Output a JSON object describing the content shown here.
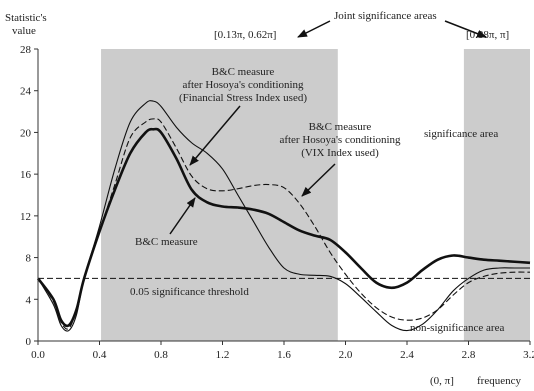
{
  "chart_data": {
    "type": "line",
    "title": "",
    "ylabel_line1": "Statistic's",
    "ylabel_line2": "value",
    "xlabel": "frequency",
    "xlim": [
      0,
      3.2
    ],
    "ylim": [
      0,
      28
    ],
    "x_ticks": [
      0.0,
      0.4,
      0.8,
      1.2,
      1.6,
      2.0,
      2.4,
      2.8,
      3.2
    ],
    "x_tick_labels": [
      "0.0",
      "0.4",
      "0.8",
      "1.2",
      "1.6",
      "2.0",
      "2.4",
      "2.8",
      "3.2"
    ],
    "y_ticks": [
      0,
      4,
      8,
      12,
      16,
      20,
      24,
      28
    ],
    "y_tick_labels": [
      "0",
      "4",
      "8",
      "12",
      "16",
      "20",
      "24",
      "28"
    ],
    "shaded_regions": [
      {
        "x_range": [
          0.41,
          1.95
        ],
        "label": "[0.13π, 0.62π]"
      },
      {
        "x_range": [
          2.77,
          3.2
        ],
        "label": "[0.88π, π]"
      }
    ],
    "threshold": {
      "value": 6.0,
      "label": "0.05 significance threshold"
    },
    "series": [
      {
        "key": "bc",
        "style": "thick",
        "x": [
          0.0,
          0.1,
          0.15,
          0.2,
          0.25,
          0.3,
          0.4,
          0.5,
          0.6,
          0.7,
          0.75,
          0.8,
          0.9,
          1.0,
          1.1,
          1.2,
          1.3,
          1.4,
          1.5,
          1.6,
          1.7,
          1.8,
          1.9,
          2.0,
          2.1,
          2.2,
          2.3,
          2.4,
          2.5,
          2.6,
          2.7,
          2.8,
          2.9,
          3.0,
          3.1,
          3.2
        ],
        "y": [
          6.0,
          4.0,
          2.0,
          1.5,
          3.0,
          6.0,
          10.5,
          14.5,
          18.0,
          20.0,
          20.3,
          20.0,
          17.5,
          14.5,
          13.3,
          12.9,
          12.8,
          12.6,
          12.2,
          11.4,
          10.6,
          10.1,
          9.7,
          8.5,
          7.0,
          5.6,
          5.1,
          5.6,
          6.8,
          7.8,
          8.2,
          8.0,
          7.8,
          7.7,
          7.6,
          7.5
        ]
      },
      {
        "key": "fsi",
        "style": "thin",
        "x": [
          0.0,
          0.1,
          0.15,
          0.2,
          0.25,
          0.3,
          0.4,
          0.5,
          0.6,
          0.7,
          0.75,
          0.8,
          0.9,
          1.0,
          1.1,
          1.2,
          1.3,
          1.4,
          1.5,
          1.6,
          1.7,
          1.8,
          1.9,
          2.0,
          2.1,
          2.2,
          2.3,
          2.4,
          2.5,
          2.6,
          2.7,
          2.8,
          2.9,
          3.0,
          3.1,
          3.2
        ],
        "y": [
          6.0,
          3.5,
          1.5,
          1.0,
          2.5,
          6.0,
          11.0,
          16.5,
          21.0,
          22.8,
          23.0,
          22.5,
          20.5,
          19.0,
          18.0,
          16.5,
          14.0,
          11.5,
          9.0,
          7.0,
          6.4,
          6.3,
          6.2,
          5.5,
          4.2,
          2.8,
          1.5,
          1.0,
          1.6,
          3.0,
          4.8,
          6.0,
          6.8,
          7.0,
          7.0,
          7.0
        ]
      },
      {
        "key": "vix",
        "style": "dashed",
        "x": [
          0.0,
          0.1,
          0.15,
          0.2,
          0.25,
          0.3,
          0.4,
          0.5,
          0.6,
          0.7,
          0.75,
          0.8,
          0.9,
          1.0,
          1.1,
          1.2,
          1.3,
          1.4,
          1.5,
          1.6,
          1.7,
          1.8,
          1.9,
          2.0,
          2.1,
          2.2,
          2.3,
          2.4,
          2.5,
          2.6,
          2.7,
          2.8,
          2.9,
          3.0,
          3.1,
          3.2
        ],
        "y": [
          6.0,
          3.8,
          1.8,
          1.2,
          3.0,
          6.0,
          10.5,
          15.0,
          19.5,
          21.0,
          21.3,
          21.0,
          18.5,
          15.8,
          14.6,
          14.4,
          14.6,
          14.9,
          15.0,
          14.7,
          13.2,
          11.0,
          8.5,
          6.4,
          4.6,
          3.2,
          2.3,
          2.0,
          2.2,
          3.0,
          4.4,
          5.6,
          6.2,
          6.5,
          6.6,
          6.6
        ]
      }
    ],
    "annotations": {
      "joint": "Joint significance areas",
      "region1": "[0.13π, 0.62π]",
      "region2": "[0.88π, π]",
      "fsi_1": "B&C measure",
      "fsi_2": "after Hosoya's conditioning",
      "fsi_3": "(Financial Stress Index used)",
      "vix_1": "B&C measure",
      "vix_2": "after Hosoya's conditioning",
      "vix_3": "(VIX Index used)",
      "bc": "B&C measure",
      "sig": "significance area",
      "threshold": "0.05 significance threshold",
      "nonsig": "non-significance area",
      "zero_pi": "(0, π]"
    }
  }
}
